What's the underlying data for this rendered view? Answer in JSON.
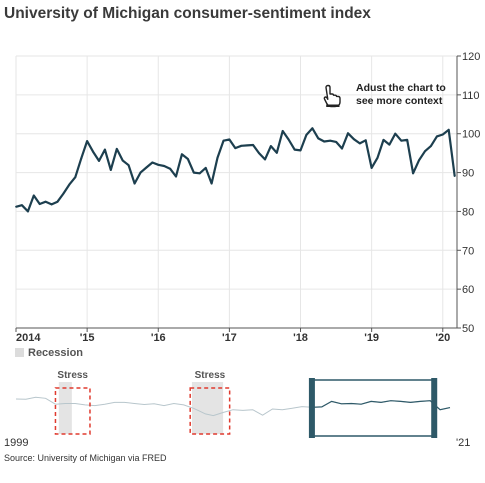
{
  "title": "University of Michigan consumer-sentiment index",
  "hint_text": "Adust the chart to see more context",
  "hint_icon": "pointing-hand-icon",
  "legend_label": "Recession",
  "overview_start_label": "1999",
  "overview_end_label": "'21",
  "source": "Source: University of Michigan via FRED",
  "colors": {
    "line": "#1d3f4f",
    "grid": "#e6e6e6",
    "recession": "#e4e4e4",
    "overview_line": "#b8c6cc",
    "brush": "#2e5968",
    "stress": "#e03a2e"
  },
  "chart_data": [
    {
      "type": "line",
      "title": "University of Michigan consumer-sentiment index",
      "xlabel": "",
      "ylabel": "",
      "grid": true,
      "y_axis_position": "right",
      "ylim": [
        50,
        120
      ],
      "y_ticks": [
        50,
        60,
        70,
        80,
        90,
        100,
        110,
        120
      ],
      "x_ticks": [
        {
          "value": 2014,
          "label": "2014"
        },
        {
          "value": 2015,
          "label": "'15"
        },
        {
          "value": 2016,
          "label": "'16"
        },
        {
          "value": 2017,
          "label": "'17"
        },
        {
          "value": 2018,
          "label": "'18"
        },
        {
          "value": 2019,
          "label": "'19"
        },
        {
          "value": 2020,
          "label": "'20"
        }
      ],
      "xlim": [
        2014.0,
        2020.2
      ],
      "series": [
        {
          "x": [
            2014.0,
            2014.083,
            2014.167,
            2014.25,
            2014.333,
            2014.417,
            2014.5,
            2014.583,
            2014.667,
            2014.75,
            2014.833,
            2014.917,
            2015.0,
            2015.083,
            2015.167,
            2015.25,
            2015.333,
            2015.417,
            2015.5,
            2015.583,
            2015.667,
            2015.75,
            2015.833,
            2015.917,
            2016.0,
            2016.083,
            2016.167,
            2016.25,
            2016.333,
            2016.417,
            2016.5,
            2016.583,
            2016.667,
            2016.75,
            2016.833,
            2016.917,
            2017.0,
            2017.083,
            2017.167,
            2017.25,
            2017.333,
            2017.417,
            2017.5,
            2017.583,
            2017.667,
            2017.75,
            2017.833,
            2017.917,
            2018.0,
            2018.083,
            2018.167,
            2018.25,
            2018.333,
            2018.417,
            2018.5,
            2018.583,
            2018.667,
            2018.75,
            2018.833,
            2018.917,
            2019.0,
            2019.083,
            2019.167,
            2019.25,
            2019.333,
            2019.417,
            2019.5,
            2019.583,
            2019.667,
            2019.75,
            2019.833,
            2019.917,
            2020.0,
            2020.083,
            2020.167
          ],
          "values": [
            81.2,
            81.6,
            80.0,
            84.1,
            81.9,
            82.5,
            81.8,
            82.5,
            84.6,
            86.9,
            88.8,
            93.6,
            98.1,
            95.4,
            93.0,
            95.9,
            90.7,
            96.1,
            93.1,
            91.9,
            87.2,
            90.0,
            91.3,
            92.6,
            92.0,
            91.7,
            91.0,
            89.0,
            94.7,
            93.5,
            90.0,
            89.8,
            91.2,
            87.2,
            93.8,
            98.2,
            98.5,
            96.3,
            96.9,
            97.0,
            97.1,
            95.0,
            93.4,
            96.8,
            95.1,
            100.7,
            98.5,
            95.9,
            95.7,
            99.7,
            101.4,
            98.8,
            98.0,
            98.2,
            97.9,
            96.2,
            100.1,
            98.6,
            97.5,
            98.3,
            91.2,
            93.8,
            98.4,
            97.2,
            100.0,
            98.2,
            98.4,
            89.8,
            93.2,
            95.5,
            96.8,
            99.3,
            99.8,
            101.0,
            89.1
          ]
        }
      ]
    },
    {
      "type": "line",
      "title": "",
      "xlabel": "",
      "ylabel": "",
      "xlim": [
        1999.0,
        2021.0
      ],
      "ylim": [
        50,
        120
      ],
      "recessions": [
        [
          2001.17,
          2001.83
        ],
        [
          2007.92,
          2009.5
        ]
      ],
      "stress_labels": [
        {
          "label": "Stress",
          "start": 2001.0,
          "end": 2002.75
        },
        {
          "label": "Stress",
          "start": 2007.83,
          "end": 2009.83
        }
      ],
      "brush_range": [
        2014.0,
        2020.2
      ],
      "series": [
        {
          "x": [
            1999,
            1999.5,
            2000,
            2000.5,
            2001,
            2001.5,
            2002,
            2002.5,
            2003,
            2003.5,
            2004,
            2004.5,
            2005,
            2005.5,
            2006,
            2006.5,
            2007,
            2007.5,
            2008,
            2008.3,
            2008.6,
            2009,
            2009.5,
            2010,
            2010.5,
            2011,
            2011.5,
            2012,
            2012.5,
            2013,
            2013.5,
            2014,
            2014.5,
            2015,
            2015.5,
            2016,
            2016.5,
            2017,
            2017.5,
            2018,
            2018.5,
            2019,
            2019.5,
            2020,
            2020.2,
            2020.5,
            2021
          ],
          "values": [
            105,
            104,
            110,
            107,
            90,
            92,
            92,
            88,
            86,
            90,
            95,
            95,
            92,
            89,
            91,
            86,
            92,
            88,
            78,
            70,
            62,
            57,
            66,
            74,
            72,
            74,
            58,
            76,
            74,
            78,
            83,
            81,
            82,
            98,
            91,
            92,
            90,
            98,
            95,
            100,
            98,
            95,
            98,
            100,
            89,
            74,
            80
          ]
        }
      ]
    }
  ]
}
